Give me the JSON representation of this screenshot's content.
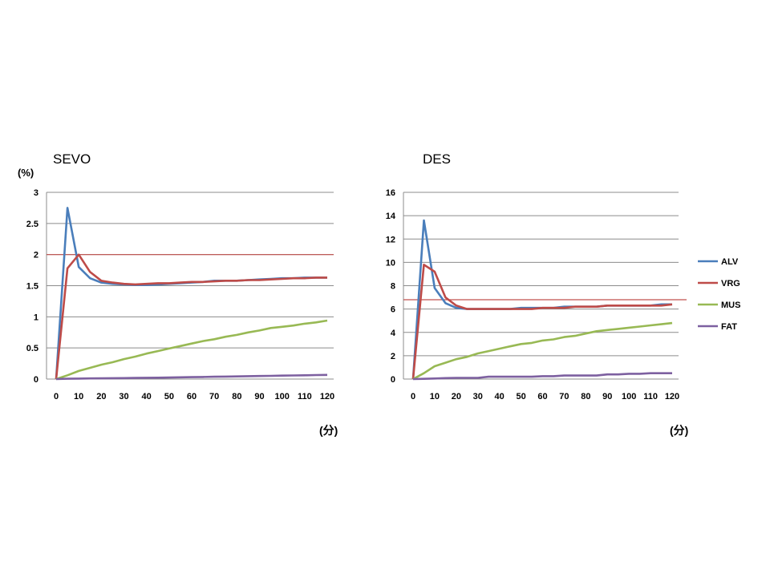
{
  "legend": [
    {
      "name": "ALV",
      "color": "#4a7ebb"
    },
    {
      "name": "VRG",
      "color": "#be4b48"
    },
    {
      "name": "MUS",
      "color": "#98b954"
    },
    {
      "name": "FAT",
      "color": "#7d60a0"
    }
  ],
  "chart_data": [
    {
      "type": "line",
      "title": "SEVO",
      "ylabel": "(%)",
      "xlabel": "(分)",
      "x": [
        0,
        5,
        10,
        15,
        20,
        25,
        30,
        35,
        40,
        45,
        50,
        55,
        60,
        65,
        70,
        75,
        80,
        85,
        90,
        95,
        100,
        105,
        110,
        115,
        120
      ],
      "xticks": [
        "0",
        "10",
        "20",
        "30",
        "40",
        "50",
        "60",
        "70",
        "80",
        "90",
        "100",
        "110",
        "120"
      ],
      "yticks": [
        "0",
        "0.5",
        "1",
        "1.5",
        "2",
        "2.5",
        "3"
      ],
      "ylim": [
        0,
        3
      ],
      "xlim": [
        0,
        120
      ],
      "grid": true,
      "reference_line": {
        "y": 2,
        "color": "#c0504d"
      },
      "series": [
        {
          "name": "ALV",
          "color": "#4a7ebb",
          "values": [
            0,
            2.75,
            1.8,
            1.62,
            1.55,
            1.53,
            1.52,
            1.51,
            1.51,
            1.52,
            1.53,
            1.54,
            1.55,
            1.56,
            1.58,
            1.58,
            1.58,
            1.59,
            1.6,
            1.61,
            1.62,
            1.62,
            1.63,
            1.63,
            1.63
          ]
        },
        {
          "name": "VRG",
          "color": "#be4b48",
          "values": [
            0,
            1.78,
            2.0,
            1.72,
            1.58,
            1.55,
            1.53,
            1.52,
            1.53,
            1.54,
            1.54,
            1.55,
            1.56,
            1.56,
            1.57,
            1.58,
            1.58,
            1.59,
            1.59,
            1.6,
            1.61,
            1.62,
            1.62,
            1.63,
            1.63
          ]
        },
        {
          "name": "MUS",
          "color": "#98b954",
          "values": [
            0,
            0.06,
            0.13,
            0.18,
            0.23,
            0.27,
            0.32,
            0.36,
            0.41,
            0.45,
            0.49,
            0.53,
            0.57,
            0.61,
            0.64,
            0.68,
            0.71,
            0.75,
            0.78,
            0.82,
            0.84,
            0.86,
            0.89,
            0.91,
            0.94
          ]
        },
        {
          "name": "FAT",
          "color": "#7d60a0",
          "values": [
            0,
            0.005,
            0.008,
            0.01,
            0.012,
            0.014,
            0.016,
            0.018,
            0.02,
            0.022,
            0.025,
            0.028,
            0.031,
            0.034,
            0.037,
            0.04,
            0.043,
            0.046,
            0.049,
            0.052,
            0.055,
            0.058,
            0.061,
            0.064,
            0.067
          ]
        }
      ]
    },
    {
      "type": "line",
      "title": "DES",
      "ylabel": "",
      "xlabel": "(分)",
      "x": [
        0,
        5,
        10,
        15,
        20,
        25,
        30,
        35,
        40,
        45,
        50,
        55,
        60,
        65,
        70,
        75,
        80,
        85,
        90,
        95,
        100,
        105,
        110,
        115,
        120
      ],
      "xticks": [
        "0",
        "10",
        "20",
        "30",
        "40",
        "50",
        "60",
        "70",
        "80",
        "90",
        "100",
        "110",
        "120"
      ],
      "yticks": [
        "0",
        "2",
        "4",
        "6",
        "8",
        "10",
        "12",
        "14",
        "16"
      ],
      "ylim": [
        0,
        16
      ],
      "xlim": [
        0,
        120
      ],
      "grid": true,
      "reference_line": {
        "y": 6.8,
        "color": "#c0504d"
      },
      "series": [
        {
          "name": "ALV",
          "color": "#4a7ebb",
          "values": [
            0,
            13.6,
            7.8,
            6.5,
            6.1,
            6.0,
            6.0,
            6.0,
            6.0,
            6.0,
            6.1,
            6.1,
            6.1,
            6.1,
            6.2,
            6.2,
            6.2,
            6.2,
            6.3,
            6.3,
            6.3,
            6.3,
            6.3,
            6.4,
            6.4
          ]
        },
        {
          "name": "VRG",
          "color": "#be4b48",
          "values": [
            0,
            9.8,
            9.2,
            7.0,
            6.3,
            6.0,
            6.0,
            6.0,
            6.0,
            6.0,
            6.0,
            6.0,
            6.1,
            6.1,
            6.1,
            6.2,
            6.2,
            6.2,
            6.3,
            6.3,
            6.3,
            6.3,
            6.3,
            6.3,
            6.4
          ]
        },
        {
          "name": "MUS",
          "color": "#98b954",
          "values": [
            0,
            0.5,
            1.1,
            1.4,
            1.7,
            1.9,
            2.2,
            2.4,
            2.6,
            2.8,
            3.0,
            3.1,
            3.3,
            3.4,
            3.6,
            3.7,
            3.9,
            4.1,
            4.2,
            4.3,
            4.4,
            4.5,
            4.6,
            4.7,
            4.8
          ]
        },
        {
          "name": "FAT",
          "color": "#7d60a0",
          "values": [
            0,
            0.02,
            0.05,
            0.08,
            0.1,
            0.1,
            0.1,
            0.2,
            0.2,
            0.2,
            0.2,
            0.2,
            0.25,
            0.25,
            0.3,
            0.3,
            0.3,
            0.3,
            0.4,
            0.4,
            0.45,
            0.45,
            0.5,
            0.5,
            0.5
          ]
        }
      ]
    }
  ]
}
